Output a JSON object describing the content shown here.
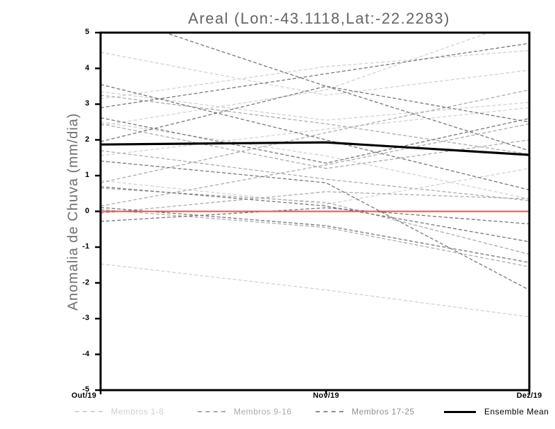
{
  "chart_data": {
    "type": "line",
    "title": "Areal (Lon:-43.1118,Lat:-22.2283)",
    "ylabel": "Anomalia de Chuva (mm/dia)",
    "xlabel": "",
    "x_categories": [
      "Out/19",
      "Nov/19",
      "Dez/19"
    ],
    "ylim": [
      -5,
      5
    ],
    "y_ticks": [
      5,
      4,
      3,
      2,
      1,
      0,
      -1,
      -2,
      -3,
      -4,
      -5
    ],
    "grid": false,
    "background": "#ffffff",
    "axis_color": "#000000",
    "zero_line": {
      "name": "zero-anomaly-line",
      "color": "#fa4a44",
      "width": 2,
      "values": [
        0,
        0,
        0
      ]
    },
    "ensemble_mean": {
      "name": "Ensemble Mean",
      "color": "#000000",
      "width": 3.2,
      "values": [
        1.87,
        1.93,
        1.58
      ]
    },
    "member_groups": [
      {
        "name": "Membros 1-8",
        "color": "#d2d2d2",
        "dash": "5 3",
        "members": [
          [
            4.45,
            3.25,
            3.95
          ],
          [
            3.35,
            2.55,
            3.05
          ],
          [
            3.15,
            4.05,
            4.5
          ],
          [
            2.5,
            1.55,
            0.35
          ],
          [
            1.56,
            2.3,
            2.9
          ],
          [
            2.4,
            3.4,
            5.4
          ],
          [
            0.86,
            0.2,
            1.2
          ],
          [
            -1.47,
            -2.2,
            -2.95
          ]
        ]
      },
      {
        "name": "Membros 9-16",
        "color": "#ababab",
        "dash": "5 3",
        "members": [
          [
            3.25,
            2.45,
            1.6
          ],
          [
            2.45,
            1.2,
            2.0
          ],
          [
            1.7,
            0.9,
            0.3
          ],
          [
            0.8,
            2.2,
            3.4
          ],
          [
            0.65,
            0.25,
            -1.2
          ],
          [
            0.15,
            1.3,
            2.45
          ],
          [
            -0.05,
            0.55,
            0.35
          ],
          [
            0.05,
            -0.45,
            -1.55
          ]
        ]
      },
      {
        "name": "Membros 17-25",
        "color": "#757575",
        "dash": "5 3",
        "members": [
          [
            5.6,
            3.5,
            2.5
          ],
          [
            3.55,
            2.0,
            0.6
          ],
          [
            2.9,
            3.85,
            4.7
          ],
          [
            2.62,
            1.35,
            2.6
          ],
          [
            1.95,
            3.5,
            1.7
          ],
          [
            1.41,
            0.8,
            -2.2
          ],
          [
            0.69,
            0.15,
            -0.85
          ],
          [
            0.11,
            -0.4,
            -1.43
          ],
          [
            -0.28,
            0.1,
            -0.35
          ]
        ]
      }
    ],
    "legend": {
      "position": "bottom",
      "entries": [
        {
          "label": "Membros 1-8",
          "color": "#d0d0d0",
          "line_style": "dashed"
        },
        {
          "label": "Membros 9-16",
          "color": "#aaaaaa",
          "line_style": "dashed"
        },
        {
          "label": "Membros 17-25",
          "color": "#8f8f8f",
          "line_style": "dashed"
        },
        {
          "label": "Ensemble Mean",
          "color": "#000000",
          "line_style": "solid"
        }
      ]
    }
  }
}
